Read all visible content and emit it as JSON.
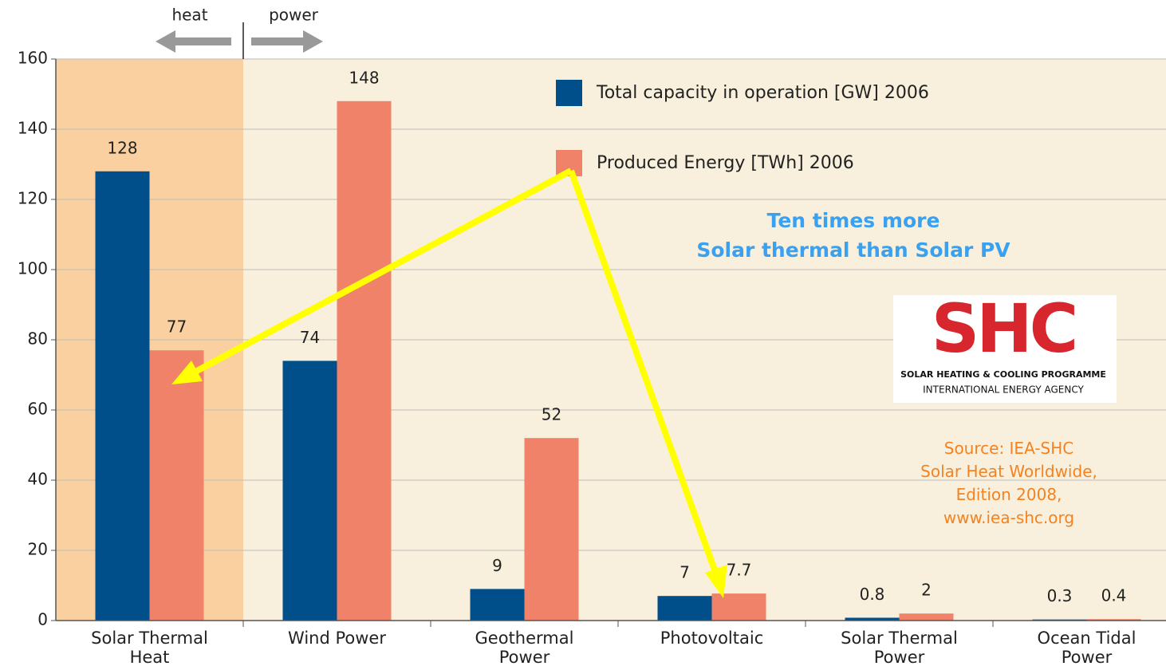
{
  "chart_data": {
    "type": "bar",
    "categories": [
      "Solar Thermal\nHeat",
      "Wind Power",
      "Geothermal\nPower",
      "Photovoltaic",
      "Solar Thermal\nPower",
      "Ocean Tidal\nPower"
    ],
    "series": [
      {
        "name": "Total capacity in operation [GW] 2006",
        "color": "#004f8a",
        "values": [
          128,
          74,
          9,
          7,
          0.8,
          0.3
        ]
      },
      {
        "name": "Produced Energy [TWh] 2006",
        "color": "#f0826a",
        "values": [
          77,
          148,
          52,
          7.7,
          2,
          0.4
        ]
      }
    ],
    "ylim": [
      0,
      160
    ],
    "yticks": [
      0,
      20,
      40,
      60,
      80,
      100,
      120,
      140,
      160
    ],
    "grid": true,
    "annotations": {
      "heat": "heat",
      "power": "power",
      "highlight": "Ten times more\nSolar thermal than Solar PV",
      "source": "Source: IEA-SHC\nSolar Heat Worldwide,\nEdition 2008,\nwww.iea-shc.org"
    },
    "logo": {
      "mark": "SHC",
      "line1": "SOLAR HEATING & COOLING PROGRAMME",
      "line2": "INTERNATIONAL ENERGY AGENCY"
    }
  }
}
